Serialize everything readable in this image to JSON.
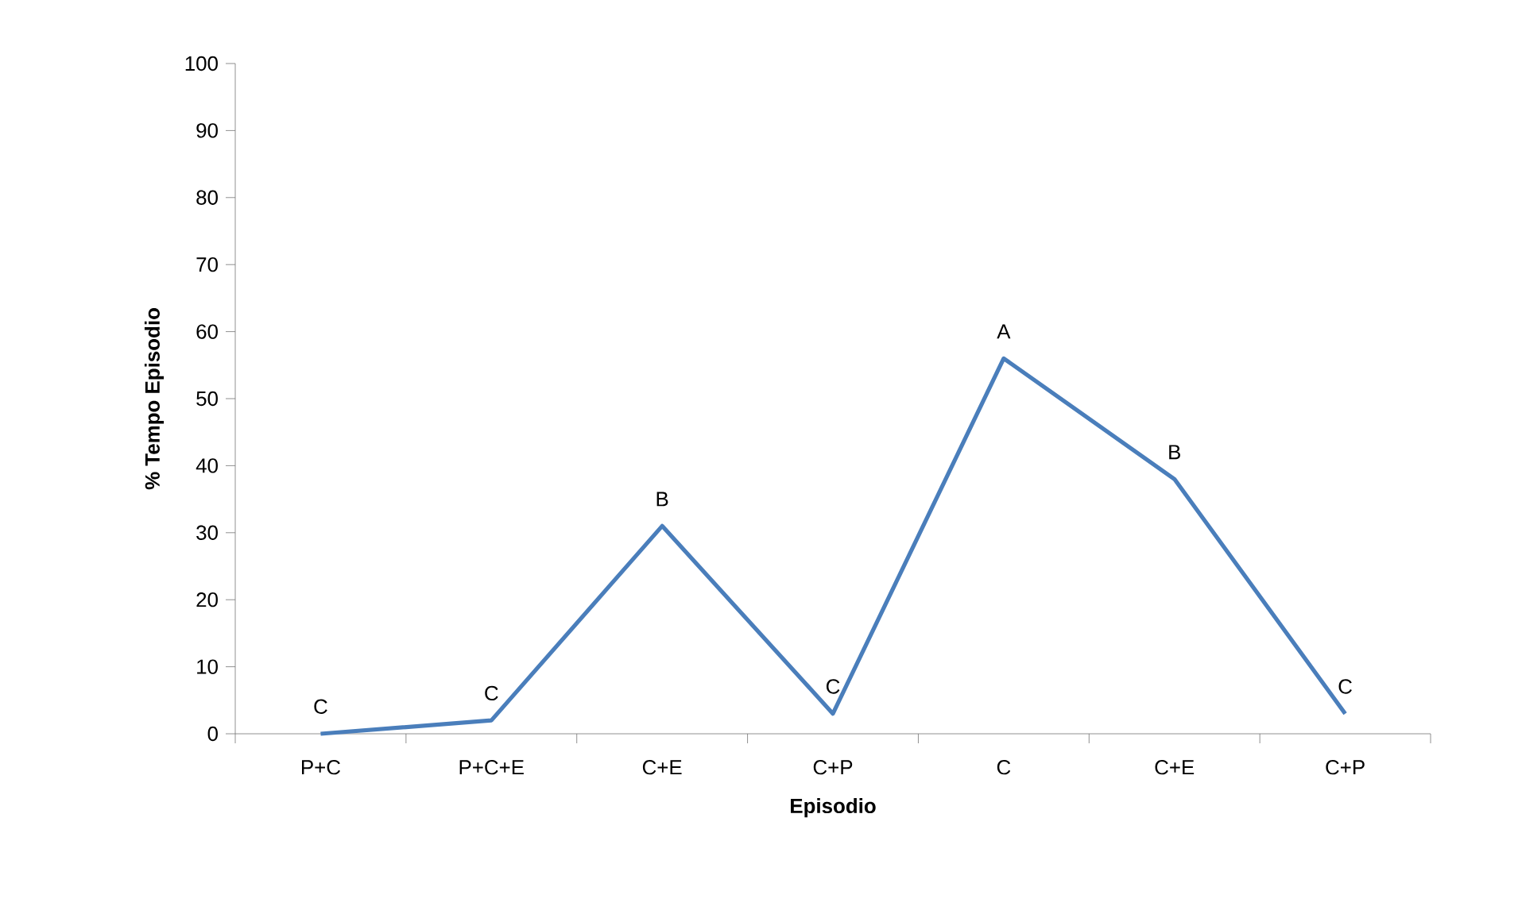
{
  "chart_data": {
    "type": "line",
    "xlabel": "Episodio",
    "ylabel": "% Tempo Episodio",
    "categories": [
      "P+C",
      "P+C+E",
      "C+E",
      "C+P",
      "C",
      "C+E",
      "C+P"
    ],
    "series": [
      {
        "color": "#4a7ebb",
        "values": [
          0,
          2,
          31,
          3,
          56,
          38,
          3
        ],
        "value_labels": [
          "C",
          "C",
          "B",
          "C",
          "A",
          "B",
          "C"
        ]
      }
    ],
    "ylim": [
      0,
      100
    ],
    "yticks": [
      0,
      10,
      20,
      30,
      40,
      50,
      60,
      70,
      80,
      90,
      100
    ],
    "grid": false
  }
}
